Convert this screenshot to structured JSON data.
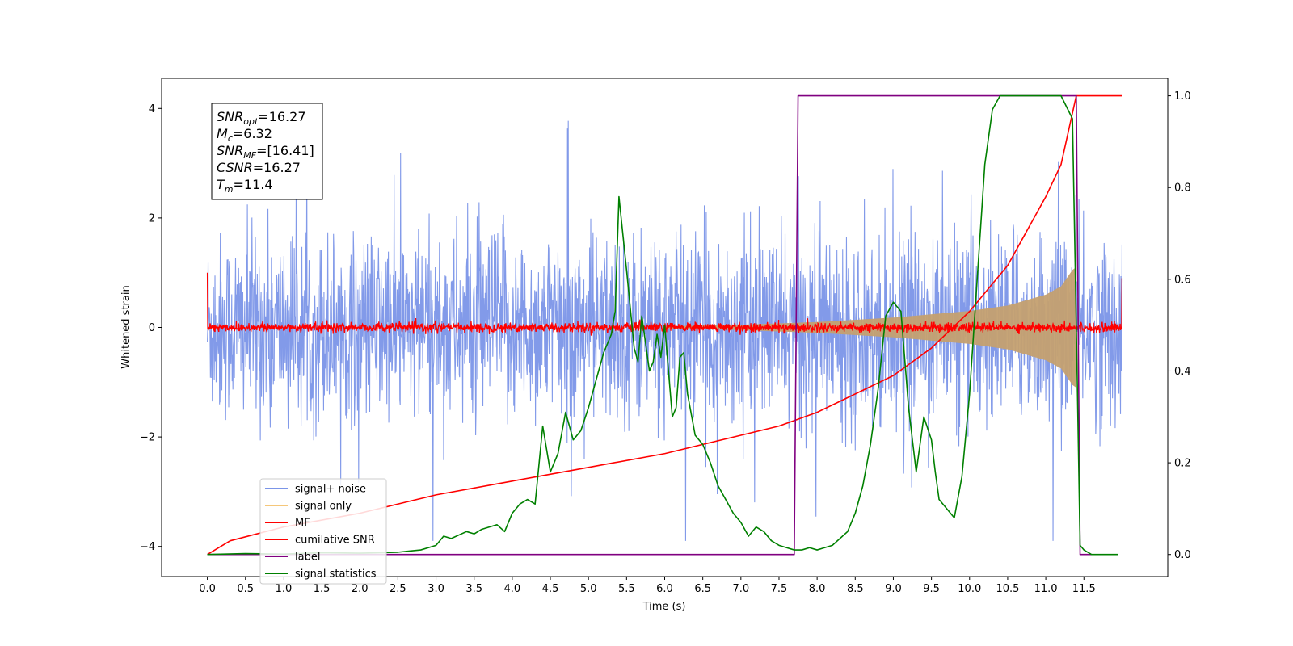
{
  "chart_data": {
    "type": "line",
    "xlabel": "Time (s)",
    "ylabel": "Whitened strain",
    "xlim": [
      -0.6,
      12.6
    ],
    "ylim": [
      -4.55,
      4.55
    ],
    "ylim_right": [
      -0.048,
      1.038
    ],
    "x_ticks": [
      "0.0",
      "0.5",
      "1.0",
      "1.5",
      "2.0",
      "2.5",
      "3.0",
      "3.5",
      "4.0",
      "4.5",
      "5.0",
      "5.5",
      "6.0",
      "6.5",
      "7.0",
      "7.5",
      "8.0",
      "8.5",
      "9.0",
      "9.5",
      "10.0",
      "10.5",
      "11.0",
      "11.5"
    ],
    "y_ticks_left": [
      "4",
      "2",
      "0",
      "−2",
      "−4"
    ],
    "y_ticks_right": [
      "1.0",
      "0.8",
      "0.6",
      "0.4",
      "0.2",
      "0.0"
    ],
    "annotation": {
      "lines": [
        {
          "base": "SNR",
          "sub": "opt",
          "value": "=16.27"
        },
        {
          "base": "M",
          "sub": "c",
          "value": "=6.32"
        },
        {
          "base": "SNR",
          "sub": "MF",
          "value": "=[16.41]"
        },
        {
          "base": "CSNR",
          "sub": "",
          "value": "=16.27"
        },
        {
          "base": "T",
          "sub": "m",
          "value": "=11.4"
        }
      ]
    },
    "legend": {
      "placement": "lower-left",
      "entries": [
        {
          "label": "signal+ noise",
          "color": "#7b95e8"
        },
        {
          "label": "signal only",
          "color": "#f5c77a"
        },
        {
          "label": "MF",
          "color": "#ff0000"
        },
        {
          "label": "cumilative SNR",
          "color": "#ff0000"
        },
        {
          "label": "label",
          "color": "#800080"
        },
        {
          "label": "signal statistics",
          "color": "#008000"
        }
      ]
    },
    "series": [
      {
        "name": "signal+ noise",
        "axis": "left",
        "color": "#7b95e8",
        "kind": "noise-band",
        "amplitude_typical": 1.5,
        "amplitude_peak": 3.8,
        "x_range": [
          0.0,
          12.0
        ]
      },
      {
        "name": "signal only",
        "axis": "left",
        "color": "#c4a070",
        "kind": "chirp-envelope",
        "x": [
          6.0,
          7.0,
          8.0,
          9.0,
          10.0,
          10.5,
          11.0,
          11.2,
          11.35,
          11.4
        ],
        "envelope": [
          0.02,
          0.05,
          0.1,
          0.18,
          0.3,
          0.4,
          0.6,
          0.75,
          1.05,
          1.1
        ]
      },
      {
        "name": "MF",
        "axis": "left",
        "color": "#ff0000",
        "kind": "noise-band",
        "amplitude_typical": 0.08,
        "x_range": [
          0.0,
          12.0
        ],
        "edge_values": [
          1.0,
          0.9
        ]
      },
      {
        "name": "cumilative SNR",
        "axis": "right",
        "color": "#ff0000",
        "x": [
          0.0,
          0.3,
          1.0,
          2.0,
          3.0,
          4.0,
          5.0,
          6.0,
          7.0,
          7.5,
          8.0,
          8.5,
          9.0,
          9.5,
          10.0,
          10.5,
          11.0,
          11.2,
          11.4,
          12.0
        ],
        "y": [
          0.0,
          0.03,
          0.06,
          0.09,
          0.13,
          0.16,
          0.19,
          0.22,
          0.26,
          0.28,
          0.31,
          0.35,
          0.39,
          0.45,
          0.53,
          0.63,
          0.78,
          0.85,
          1.0,
          1.0
        ]
      },
      {
        "name": "label",
        "axis": "right",
        "color": "#800080",
        "x": [
          0.0,
          7.7,
          7.75,
          11.4,
          11.45,
          11.6
        ],
        "y": [
          0.0,
          0.0,
          1.0,
          1.0,
          0.0,
          0.0
        ]
      },
      {
        "name": "signal statistics",
        "axis": "right",
        "color": "#008000",
        "x": [
          0.0,
          0.5,
          1.0,
          1.5,
          2.0,
          2.5,
          2.8,
          3.0,
          3.1,
          3.2,
          3.4,
          3.5,
          3.6,
          3.7,
          3.8,
          3.9,
          4.0,
          4.1,
          4.2,
          4.3,
          4.4,
          4.5,
          4.6,
          4.7,
          4.8,
          4.9,
          5.0,
          5.1,
          5.2,
          5.3,
          5.35,
          5.4,
          5.5,
          5.6,
          5.65,
          5.7,
          5.8,
          5.85,
          5.9,
          5.95,
          6.0,
          6.1,
          6.15,
          6.2,
          6.25,
          6.3,
          6.4,
          6.5,
          6.6,
          6.7,
          6.8,
          6.9,
          7.0,
          7.1,
          7.2,
          7.3,
          7.4,
          7.5,
          7.6,
          7.7,
          7.8,
          7.9,
          8.0,
          8.2,
          8.4,
          8.5,
          8.6,
          8.7,
          8.8,
          8.9,
          9.0,
          9.1,
          9.2,
          9.3,
          9.4,
          9.5,
          9.55,
          9.6,
          9.7,
          9.8,
          9.9,
          10.0,
          10.1,
          10.2,
          10.3,
          10.4,
          10.5,
          11.0,
          11.2,
          11.35,
          11.4,
          11.45,
          11.5,
          11.6,
          11.95
        ],
        "y": [
          0.0,
          0.002,
          0.001,
          0.004,
          0.003,
          0.005,
          0.01,
          0.02,
          0.04,
          0.035,
          0.05,
          0.045,
          0.055,
          0.06,
          0.065,
          0.05,
          0.09,
          0.11,
          0.12,
          0.11,
          0.28,
          0.18,
          0.22,
          0.31,
          0.25,
          0.27,
          0.32,
          0.38,
          0.44,
          0.48,
          0.53,
          0.78,
          0.62,
          0.45,
          0.42,
          0.52,
          0.4,
          0.42,
          0.48,
          0.43,
          0.5,
          0.3,
          0.32,
          0.43,
          0.44,
          0.35,
          0.26,
          0.24,
          0.2,
          0.15,
          0.12,
          0.09,
          0.07,
          0.04,
          0.06,
          0.05,
          0.03,
          0.02,
          0.015,
          0.01,
          0.01,
          0.015,
          0.01,
          0.02,
          0.05,
          0.09,
          0.15,
          0.24,
          0.36,
          0.52,
          0.55,
          0.53,
          0.32,
          0.18,
          0.3,
          0.25,
          0.18,
          0.12,
          0.1,
          0.08,
          0.17,
          0.35,
          0.6,
          0.85,
          0.97,
          1.0,
          1.0,
          1.0,
          1.0,
          0.95,
          0.5,
          0.02,
          0.01,
          0.0,
          0.0
        ]
      }
    ]
  }
}
